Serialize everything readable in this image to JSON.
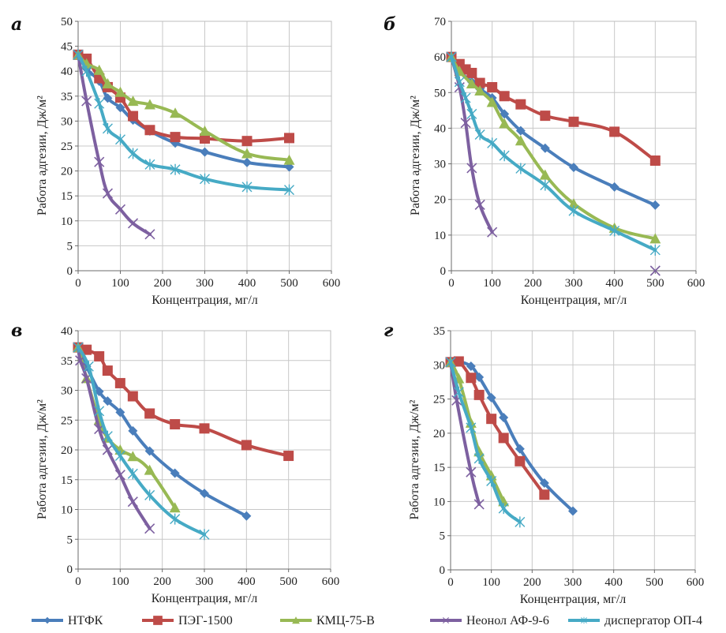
{
  "legend": [
    {
      "name": "НТФК",
      "color": "#4a7ebb",
      "marker": "diamond"
    },
    {
      "name": "ПЭГ-1500",
      "color": "#be4b48",
      "marker": "square"
    },
    {
      "name": "КМЦ-75-В",
      "color": "#98b954",
      "marker": "triangle"
    },
    {
      "name": "Неонол АФ-9-6",
      "color": "#7d60a0",
      "marker": "x"
    },
    {
      "name": "диспергатор ОП-4",
      "color": "#46aac5",
      "marker": "star"
    }
  ],
  "chart_data": [
    {
      "panel": "а",
      "type": "line",
      "xlabel": "Концентрация, мг/л",
      "ylabel": "Работа адгезии, Дж/м²",
      "xlim": [
        0,
        600
      ],
      "xticks": [
        0,
        100,
        200,
        300,
        400,
        500,
        600
      ],
      "ylim": [
        0,
        50
      ],
      "yticks": [
        0,
        5,
        10,
        15,
        20,
        25,
        30,
        35,
        40,
        45,
        50
      ],
      "grid": true,
      "series": [
        {
          "name": "НТФК",
          "points": [
            [
              0,
              43.3
            ],
            [
              20,
              40.5
            ],
            [
              50,
              38
            ],
            [
              70,
              34.6
            ],
            [
              100,
              32.7
            ],
            [
              130,
              30.2
            ],
            [
              170,
              28
            ],
            [
              230,
              25.6
            ],
            [
              300,
              23.8
            ],
            [
              400,
              21.7
            ],
            [
              500,
              20.8
            ]
          ]
        },
        {
          "name": "ПЭГ-1500",
          "points": [
            [
              0,
              43.3
            ],
            [
              20,
              42.5
            ],
            [
              50,
              38.6
            ],
            [
              70,
              36.8
            ],
            [
              100,
              34.7
            ],
            [
              130,
              31
            ],
            [
              170,
              28.2
            ],
            [
              230,
              26.8
            ],
            [
              300,
              26.5
            ],
            [
              400,
              26
            ],
            [
              500,
              26.6
            ]
          ]
        },
        {
          "name": "КМЦ-75-В",
          "points": [
            [
              0,
              43.3
            ],
            [
              20,
              41.5
            ],
            [
              50,
              40.2
            ],
            [
              70,
              37.5
            ],
            [
              100,
              35.8
            ],
            [
              130,
              34
            ],
            [
              170,
              33.3
            ],
            [
              230,
              31.6
            ],
            [
              300,
              28
            ],
            [
              400,
              23.5
            ],
            [
              500,
              22.2
            ]
          ]
        },
        {
          "name": "Неонол АФ-9-6",
          "points": [
            [
              0,
              43.3
            ],
            [
              20,
              34
            ],
            [
              50,
              21.8
            ],
            [
              70,
              15.5
            ],
            [
              100,
              12.3
            ],
            [
              130,
              9.5
            ],
            [
              170,
              7.3
            ]
          ]
        },
        {
          "name": "диспергатор ОП-4",
          "points": [
            [
              0,
              43.3
            ],
            [
              20,
              40
            ],
            [
              50,
              33.5
            ],
            [
              70,
              28.5
            ],
            [
              100,
              26.3
            ],
            [
              130,
              23.5
            ],
            [
              170,
              21.3
            ],
            [
              230,
              20.3
            ],
            [
              300,
              18.4
            ],
            [
              400,
              16.8
            ],
            [
              500,
              16.2
            ]
          ]
        }
      ]
    },
    {
      "panel": "б",
      "type": "line",
      "xlabel": "Концентрация, мг/л",
      "ylabel": "Работа адгезии, Дж/м²",
      "xlim": [
        0,
        600
      ],
      "xticks": [
        0,
        100,
        200,
        300,
        400,
        500,
        600
      ],
      "ylim": [
        0,
        70
      ],
      "yticks": [
        0,
        10,
        20,
        30,
        40,
        50,
        60,
        70
      ],
      "grid": true,
      "series": [
        {
          "name": "НТФК",
          "points": [
            [
              0,
              60
            ],
            [
              20,
              56
            ],
            [
              50,
              53
            ],
            [
              70,
              51
            ],
            [
              100,
              48.5
            ],
            [
              130,
              44
            ],
            [
              170,
              39.3
            ],
            [
              230,
              34.4
            ],
            [
              300,
              29
            ],
            [
              400,
              23.5
            ],
            [
              500,
              18.4
            ]
          ]
        },
        {
          "name": "ПЭГ-1500",
          "points": [
            [
              0,
              60
            ],
            [
              20,
              58
            ],
            [
              35,
              56.5
            ],
            [
              50,
              55.5
            ],
            [
              70,
              52.7
            ],
            [
              100,
              51.5
            ],
            [
              130,
              49
            ],
            [
              170,
              46.7
            ],
            [
              230,
              43.5
            ],
            [
              300,
              41.8
            ],
            [
              400,
              39
            ],
            [
              500,
              30.9
            ]
          ]
        },
        {
          "name": "КМЦ-75-В",
          "points": [
            [
              0,
              60
            ],
            [
              20,
              56
            ],
            [
              50,
              52.5
            ],
            [
              70,
              50.5
            ],
            [
              100,
              47.3
            ],
            [
              130,
              41.3
            ],
            [
              170,
              36.5
            ],
            [
              230,
              26.9
            ],
            [
              300,
              18.8
            ],
            [
              400,
              12
            ],
            [
              500,
              9
            ]
          ]
        },
        {
          "name": "Неонол АФ-9-6",
          "points": [
            [
              0,
              60
            ],
            [
              20,
              51.5
            ],
            [
              35,
              41.5
            ],
            [
              50,
              28.8
            ],
            [
              70,
              18.5
            ],
            [
              100,
              10.8
            ]
          ],
          "extra_points": [
            [
              500,
              0
            ]
          ]
        },
        {
          "name": "диспергатор ОП-4",
          "points": [
            [
              0,
              60
            ],
            [
              20,
              53
            ],
            [
              35,
              48.5
            ],
            [
              50,
              44
            ],
            [
              70,
              38.2
            ],
            [
              100,
              35.8
            ],
            [
              130,
              32.3
            ],
            [
              170,
              28.7
            ],
            [
              230,
              24
            ],
            [
              300,
              16.8
            ],
            [
              400,
              11.2
            ],
            [
              500,
              5.8
            ]
          ]
        }
      ]
    },
    {
      "panel": "в",
      "type": "line",
      "xlabel": "Концентрация, мг/л",
      "ylabel": "Работа адгезии, Дж/м²",
      "xlim": [
        0,
        600
      ],
      "xticks": [
        0,
        100,
        200,
        300,
        400,
        500,
        600
      ],
      "ylim": [
        0,
        40
      ],
      "yticks": [
        0,
        5,
        10,
        15,
        20,
        25,
        30,
        35,
        40
      ],
      "grid": true,
      "series": [
        {
          "name": "НТФК",
          "points": [
            [
              0,
              37.2
            ],
            [
              20,
              34
            ],
            [
              50,
              29.8
            ],
            [
              70,
              28.2
            ],
            [
              100,
              26.3
            ],
            [
              130,
              23.2
            ],
            [
              170,
              19.8
            ],
            [
              230,
              16.1
            ],
            [
              300,
              12.7
            ],
            [
              400,
              8.9
            ]
          ]
        },
        {
          "name": "ПЭГ-1500",
          "points": [
            [
              0,
              37.2
            ],
            [
              20,
              36.8
            ],
            [
              50,
              35.7
            ],
            [
              70,
              33.3
            ],
            [
              100,
              31.2
            ],
            [
              130,
              29
            ],
            [
              170,
              26.1
            ],
            [
              230,
              24.3
            ],
            [
              300,
              23.6
            ],
            [
              400,
              20.8
            ],
            [
              500,
              19
            ]
          ]
        },
        {
          "name": "КМЦ-75-В",
          "points": [
            [
              0,
              37.2
            ],
            [
              20,
              32
            ],
            [
              50,
              25
            ],
            [
              70,
              22
            ],
            [
              100,
              20
            ],
            [
              130,
              18.9
            ],
            [
              170,
              16.6
            ],
            [
              230,
              10.3
            ]
          ]
        },
        {
          "name": "Неонол АФ-9-6",
          "points": [
            [
              0,
              37.2
            ],
            [
              5,
              35
            ],
            [
              20,
              32
            ],
            [
              50,
              23.5
            ],
            [
              70,
              20
            ],
            [
              100,
              15.8
            ],
            [
              130,
              11.3
            ],
            [
              170,
              6.8
            ]
          ]
        },
        {
          "name": "диспергатор ОП-4",
          "points": [
            [
              0,
              37.2
            ],
            [
              25,
              34
            ],
            [
              50,
              26.5
            ],
            [
              70,
              22.3
            ],
            [
              100,
              19
            ],
            [
              130,
              16
            ],
            [
              170,
              12.4
            ],
            [
              230,
              8.4
            ],
            [
              300,
              5.8
            ]
          ]
        }
      ]
    },
    {
      "panel": "г",
      "type": "line",
      "xlabel": "Концентрация, мг/л",
      "ylabel": "Работа адгезии, Дж/м²",
      "xlim": [
        0,
        600
      ],
      "xticks": [
        0,
        100,
        200,
        300,
        400,
        500,
        600
      ],
      "ylim": [
        0,
        35
      ],
      "yticks": [
        0,
        5,
        10,
        15,
        20,
        25,
        30,
        35
      ],
      "grid": true,
      "series": [
        {
          "name": "НТФК",
          "points": [
            [
              0,
              30.4
            ],
            [
              20,
              30.5
            ],
            [
              50,
              29.8
            ],
            [
              70,
              28.2
            ],
            [
              100,
              25.2
            ],
            [
              130,
              22.3
            ],
            [
              170,
              17.7
            ],
            [
              230,
              12.7
            ],
            [
              300,
              8.6
            ]
          ]
        },
        {
          "name": "ПЭГ-1500",
          "points": [
            [
              0,
              30.4
            ],
            [
              20,
              30.5
            ],
            [
              50,
              28.1
            ],
            [
              70,
              25.6
            ],
            [
              100,
              22.1
            ],
            [
              130,
              19.3
            ],
            [
              170,
              15.9
            ],
            [
              230,
              11
            ]
          ]
        },
        {
          "name": "КМЦ-75-В",
          "points": [
            [
              0,
              30.4
            ],
            [
              20,
              28
            ],
            [
              50,
              21.5
            ],
            [
              70,
              17.3
            ],
            [
              100,
              13.8
            ],
            [
              130,
              10
            ]
          ]
        },
        {
          "name": "Неонол АФ-9-6",
          "points": [
            [
              0,
              30.4
            ],
            [
              15,
              24.8
            ],
            [
              50,
              14.3
            ],
            [
              70,
              9.6
            ]
          ]
        },
        {
          "name": "диспергатор ОП-4",
          "points": [
            [
              0,
              30.4
            ],
            [
              20,
              26
            ],
            [
              50,
              20.8
            ],
            [
              70,
              16.3
            ],
            [
              100,
              13
            ],
            [
              130,
              9
            ],
            [
              170,
              7
            ]
          ]
        }
      ]
    }
  ]
}
